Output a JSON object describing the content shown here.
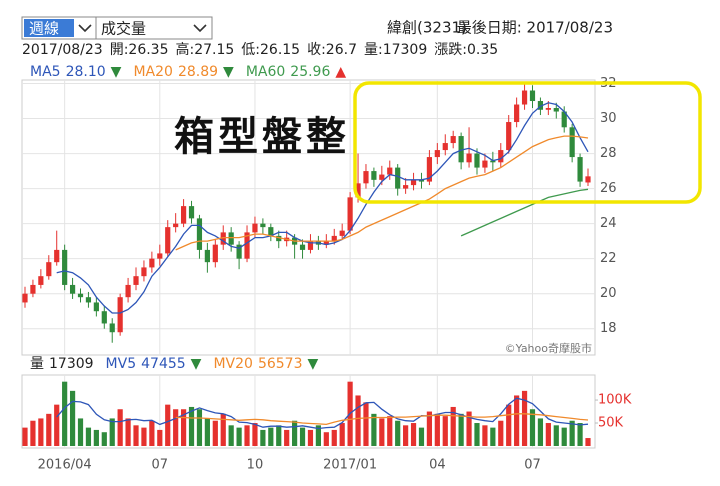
{
  "header": {
    "period_select": "週線",
    "indicator_select": "成交量",
    "stock": "緯創(3231)",
    "last_date": "最後日期: 2017/08/23"
  },
  "info": [
    "2017/08/23",
    "開:26.35",
    "高:27.15",
    "低:26.15",
    "收:26.7",
    "量:17309",
    "漲跌:0.35"
  ],
  "chart_data": [
    {
      "type": "candlestick",
      "annotation": "箱型盤整",
      "watermark": "©Yahoo奇摩股市",
      "up_color": "#e5312e",
      "down_color": "#2f8a3c",
      "ylim": [
        16.5,
        32.2
      ],
      "yticks": [
        18,
        20,
        22,
        24,
        26,
        28,
        30,
        32
      ],
      "grid": true,
      "open": [
        19.5,
        20.0,
        20.5,
        21.0,
        21.8,
        22.5,
        20.5,
        20.0,
        19.8,
        19.5,
        19.0,
        18.3,
        17.8,
        19.8,
        20.5,
        21.0,
        21.5,
        22.0,
        22.3,
        23.8,
        24.0,
        25.0,
        24.3,
        22.5,
        21.8,
        22.8,
        23.5,
        22.8,
        22.0,
        23.5,
        24.0,
        23.8,
        23.3,
        23.0,
        23.2,
        22.8,
        22.5,
        23.0,
        22.8,
        23.0,
        23.3,
        23.6,
        25.5,
        26.3,
        27.0,
        26.5,
        26.8,
        27.2,
        26.0,
        26.2,
        26.5,
        26.4,
        27.8,
        28.2,
        28.6,
        29.0,
        27.5,
        28.0,
        27.2,
        27.6,
        27.5,
        28.2,
        29.8,
        30.8,
        31.6,
        31.0,
        30.5,
        30.6,
        30.4,
        29.5,
        27.8,
        26.35
      ],
      "high": [
        20.4,
        20.8,
        21.4,
        22.2,
        23.6,
        22.8,
        20.9,
        20.3,
        20.1,
        19.8,
        19.3,
        18.6,
        20.0,
        20.9,
        21.5,
        21.9,
        22.4,
        22.8,
        24.2,
        24.6,
        25.4,
        25.3,
        24.5,
        22.9,
        23.1,
        23.9,
        23.8,
        23.0,
        23.9,
        24.4,
        24.3,
        24.0,
        23.6,
        23.6,
        23.4,
        23.1,
        23.4,
        23.3,
        23.4,
        23.7,
        24.0,
        25.8,
        28.0,
        27.4,
        27.2,
        27.3,
        27.6,
        27.4,
        26.6,
        26.9,
        26.9,
        28.2,
        28.6,
        29.1,
        29.3,
        29.2,
        29.5,
        28.3,
        28.0,
        28.1,
        28.6,
        30.2,
        31.2,
        32.0,
        31.9,
        31.2,
        31.0,
        30.9,
        30.7,
        29.7,
        28.0,
        27.15
      ],
      "low": [
        19.2,
        19.8,
        20.3,
        20.8,
        21.6,
        20.2,
        19.7,
        19.5,
        19.2,
        18.7,
        18.0,
        17.2,
        17.6,
        19.5,
        20.2,
        20.7,
        21.2,
        21.6,
        22.1,
        23.5,
        23.8,
        24.0,
        22.0,
        21.2,
        21.5,
        22.5,
        22.4,
        21.4,
        21.8,
        23.2,
        23.4,
        23.0,
        22.6,
        22.7,
        22.0,
        22.0,
        22.3,
        22.5,
        22.6,
        22.8,
        23.1,
        23.4,
        25.2,
        26.0,
        26.1,
        26.2,
        26.5,
        25.6,
        25.7,
        25.9,
        26.0,
        26.2,
        27.4,
        27.9,
        28.3,
        27.1,
        27.2,
        26.8,
        26.9,
        27.0,
        27.2,
        28.0,
        29.5,
        30.5,
        30.6,
        30.2,
        30.2,
        30.0,
        29.2,
        27.5,
        26.1,
        26.15
      ],
      "close": [
        20.0,
        20.5,
        21.0,
        21.8,
        22.5,
        20.5,
        20.0,
        19.8,
        19.5,
        19.0,
        18.3,
        17.8,
        19.8,
        20.5,
        21.0,
        21.5,
        22.0,
        22.3,
        23.8,
        24.0,
        25.0,
        24.3,
        22.5,
        21.8,
        22.8,
        23.5,
        22.8,
        22.0,
        23.5,
        24.0,
        23.8,
        23.3,
        23.0,
        23.2,
        22.8,
        22.5,
        23.0,
        22.8,
        23.0,
        23.3,
        23.6,
        25.5,
        26.3,
        27.0,
        26.5,
        26.8,
        27.2,
        26.0,
        26.2,
        26.5,
        26.4,
        27.8,
        28.2,
        28.6,
        29.0,
        27.5,
        28.0,
        27.2,
        27.6,
        27.5,
        28.2,
        29.8,
        30.8,
        31.6,
        31.0,
        30.5,
        30.6,
        30.4,
        29.5,
        27.8,
        26.4,
        26.7
      ],
      "series": [
        {
          "name": "MA5",
          "color": "#2e56b8",
          "legend_value": "28.10",
          "arrow": "▼",
          "arrow_color": "#2f8a3c",
          "values": [
            null,
            null,
            null,
            null,
            21.2,
            21.3,
            21.2,
            20.9,
            20.5,
            19.8,
            19.3,
            18.9,
            18.9,
            19.1,
            19.5,
            20.1,
            21.0,
            21.5,
            22.1,
            22.7,
            23.4,
            23.9,
            23.9,
            23.5,
            23.3,
            23.0,
            22.7,
            22.6,
            22.9,
            23.2,
            23.2,
            23.3,
            23.5,
            23.5,
            23.2,
            23.0,
            22.9,
            22.9,
            22.8,
            22.9,
            23.1,
            23.6,
            24.3,
            25.1,
            25.8,
            26.4,
            26.8,
            26.7,
            26.5,
            26.5,
            26.5,
            26.6,
            27.0,
            27.5,
            28.0,
            28.2,
            28.3,
            28.1,
            27.9,
            27.6,
            27.7,
            28.1,
            28.8,
            29.6,
            30.3,
            30.7,
            30.9,
            30.8,
            30.4,
            29.8,
            28.9,
            28.1
          ]
        },
        {
          "name": "MA20",
          "color": "#f08a2c",
          "legend_value": "28.89",
          "arrow": "▼",
          "arrow_color": "#2f8a3c",
          "values": [
            null,
            null,
            null,
            null,
            null,
            null,
            null,
            null,
            null,
            null,
            null,
            null,
            null,
            null,
            null,
            null,
            null,
            null,
            null,
            22.5,
            22.7,
            22.9,
            23.0,
            23.0,
            23.1,
            23.2,
            23.2,
            23.2,
            23.3,
            23.4,
            23.4,
            23.3,
            23.2,
            23.1,
            23.0,
            23.0,
            23.0,
            23.0,
            23.0,
            23.0,
            23.1,
            23.3,
            23.5,
            23.8,
            24.0,
            24.2,
            24.4,
            24.6,
            24.8,
            25.0,
            25.2,
            25.4,
            25.7,
            26.0,
            26.2,
            26.4,
            26.6,
            26.7,
            26.8,
            27.0,
            27.2,
            27.5,
            27.8,
            28.1,
            28.4,
            28.6,
            28.8,
            28.9,
            29.0,
            29.0,
            28.95,
            28.89
          ]
        },
        {
          "name": "MA60",
          "color": "#3f9a4e",
          "legend_value": "25.96",
          "arrow": "▲",
          "arrow_color": "#e5312e",
          "values": [
            null,
            null,
            null,
            null,
            null,
            null,
            null,
            null,
            null,
            null,
            null,
            null,
            null,
            null,
            null,
            null,
            null,
            null,
            null,
            null,
            null,
            null,
            null,
            null,
            null,
            null,
            null,
            null,
            null,
            null,
            null,
            null,
            null,
            null,
            null,
            null,
            null,
            null,
            null,
            null,
            null,
            null,
            null,
            null,
            null,
            null,
            null,
            null,
            null,
            null,
            null,
            null,
            null,
            null,
            null,
            23.3,
            23.5,
            23.7,
            23.9,
            24.1,
            24.3,
            24.5,
            24.7,
            24.9,
            25.1,
            25.3,
            25.5,
            25.6,
            25.7,
            25.8,
            25.9,
            25.96
          ]
        }
      ]
    },
    {
      "type": "bar",
      "ylim": [
        0,
        148000
      ],
      "yticks": [
        {
          "value": 50000,
          "label": "50K"
        },
        {
          "value": 100000,
          "label": "100K"
        }
      ],
      "categories": [
        null,
        null,
        null,
        null,
        null,
        "2016/04",
        null,
        null,
        null,
        null,
        null,
        null,
        null,
        null,
        null,
        null,
        null,
        "07",
        null,
        null,
        null,
        null,
        null,
        null,
        null,
        null,
        null,
        null,
        null,
        "10",
        null,
        null,
        null,
        null,
        null,
        null,
        null,
        null,
        null,
        null,
        null,
        "2017/01",
        null,
        null,
        null,
        null,
        null,
        null,
        null,
        null,
        null,
        null,
        "04",
        null,
        null,
        null,
        null,
        null,
        null,
        null,
        null,
        null,
        null,
        null,
        "07",
        null,
        null,
        null,
        null,
        null,
        null,
        null
      ],
      "series": [
        {
          "name": "量",
          "legend_value": "17309",
          "values": [
            40000,
            55000,
            60000,
            70000,
            90000,
            140000,
            120000,
            60000,
            40000,
            35000,
            30000,
            60000,
            80000,
            60000,
            45000,
            40000,
            55000,
            35000,
            90000,
            80000,
            80000,
            85000,
            80000,
            60000,
            55000,
            70000,
            45000,
            40000,
            45000,
            50000,
            35000,
            40000,
            45000,
            35000,
            55000,
            40000,
            35000,
            45000,
            30000,
            35000,
            50000,
            140000,
            110000,
            95000,
            70000,
            60000,
            65000,
            55000,
            45000,
            50000,
            40000,
            75000,
            70000,
            65000,
            85000,
            70000,
            75000,
            50000,
            45000,
            40000,
            55000,
            90000,
            110000,
            120000,
            80000,
            60000,
            50000,
            45000,
            40000,
            55000,
            50000,
            17309
          ]
        },
        {
          "name": "MV5",
          "color": "#2e56b8",
          "legend_value": "47455",
          "arrow": "▼",
          "arrow_color": "#2f8a3c",
          "values": [
            null,
            null,
            null,
            null,
            63000,
            83000,
            97000,
            96000,
            90000,
            69000,
            57000,
            53000,
            53000,
            57000,
            58000,
            55000,
            56000,
            47000,
            53000,
            60000,
            68000,
            76000,
            83000,
            77000,
            72000,
            70000,
            64000,
            52000,
            51000,
            47000,
            41000,
            43000,
            43000,
            41000,
            42000,
            44000,
            41000,
            38000,
            40000,
            41000,
            51000,
            71000,
            84000,
            94000,
            95000,
            80000,
            68000,
            59000,
            55000,
            54000,
            66000,
            65000,
            69000,
            73000,
            73000,
            68000,
            62000,
            58000,
            55000,
            53000,
            70000,
            91000,
            104000,
            100000,
            92000,
            76000,
            59000,
            52000,
            50000,
            48000,
            46000,
            47455
          ]
        },
        {
          "name": "MV20",
          "color": "#f08a2c",
          "legend_value": "56573",
          "arrow": "▼",
          "arrow_color": "#2f8a3c",
          "values": [
            null,
            null,
            null,
            null,
            null,
            null,
            null,
            null,
            null,
            null,
            null,
            null,
            null,
            null,
            null,
            null,
            null,
            null,
            null,
            62000,
            62000,
            61000,
            61000,
            60000,
            59000,
            58000,
            57000,
            56000,
            57000,
            58000,
            57000,
            55000,
            54000,
            53000,
            52000,
            50000,
            49000,
            48000,
            47000,
            52000,
            56000,
            58000,
            60000,
            61000,
            62000,
            62000,
            62000,
            63000,
            63000,
            64000,
            65000,
            66000,
            67000,
            67000,
            66000,
            65000,
            64000,
            63000,
            63000,
            64000,
            66000,
            68000,
            70000,
            70000,
            69000,
            68000,
            66000,
            64000,
            62000,
            60000,
            58000,
            56573
          ]
        }
      ]
    }
  ]
}
